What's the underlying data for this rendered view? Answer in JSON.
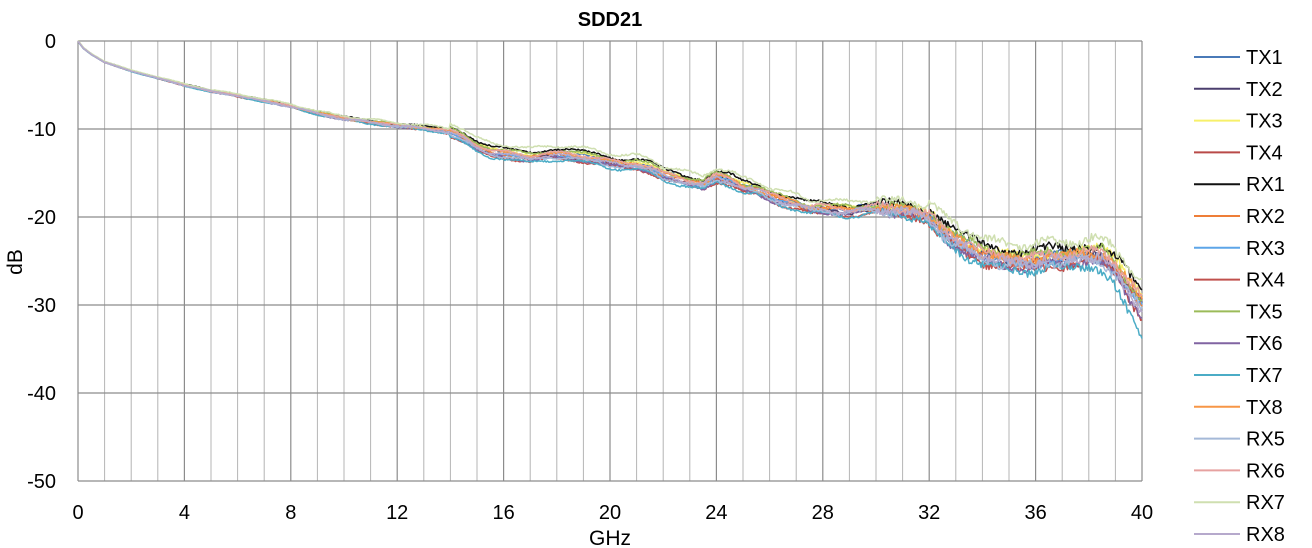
{
  "chart_data": {
    "type": "line",
    "title": "SDD21",
    "xlabel": "GHz",
    "ylabel": "dB",
    "xlim": [
      0,
      40
    ],
    "ylim": [
      -50,
      0
    ],
    "xticks": [
      0,
      4,
      8,
      12,
      16,
      20,
      24,
      28,
      32,
      36,
      40
    ],
    "yticks": [
      0,
      -10,
      -20,
      -30,
      -40,
      -50
    ],
    "x_minor_step": 1,
    "grid": true,
    "legend_position": "right",
    "base_curve": {
      "x": [
        0,
        0.2,
        0.5,
        1,
        2,
        3,
        4,
        5,
        6,
        7,
        8,
        9,
        10,
        11,
        12,
        13,
        14,
        14.5,
        15,
        15.5,
        16,
        16.5,
        17,
        17.5,
        18,
        18.5,
        19,
        19.5,
        20,
        20.5,
        21,
        21.5,
        22,
        22.5,
        23,
        23.5,
        24,
        24.5,
        25,
        25.5,
        26,
        26.5,
        27,
        27.5,
        28,
        28.5,
        29,
        29.5,
        30,
        30.5,
        31,
        31.5,
        32,
        32.5,
        33,
        33.5,
        34,
        34.5,
        35,
        35.5,
        36,
        36.5,
        37,
        37.5,
        38,
        38.5,
        39,
        39.5,
        40
      ],
      "y": [
        0,
        -0.8,
        -1.5,
        -2.4,
        -3.4,
        -4.2,
        -5.0,
        -5.7,
        -6.2,
        -6.8,
        -7.4,
        -8.2,
        -8.8,
        -9.2,
        -9.6,
        -9.9,
        -10.3,
        -11.0,
        -12.0,
        -12.6,
        -12.8,
        -13.0,
        -13.2,
        -13.0,
        -12.9,
        -13.0,
        -13.2,
        -13.4,
        -13.8,
        -14.0,
        -14.0,
        -14.4,
        -15.2,
        -15.6,
        -16.0,
        -16.3,
        -15.4,
        -15.8,
        -16.6,
        -16.9,
        -17.6,
        -18.1,
        -18.5,
        -19.0,
        -19.0,
        -19.2,
        -19.3,
        -19.1,
        -19.0,
        -19.1,
        -19.2,
        -19.4,
        -20.0,
        -21.5,
        -22.7,
        -23.5,
        -24.2,
        -24.6,
        -24.9,
        -25.1,
        -24.9,
        -24.6,
        -24.7,
        -24.5,
        -24.3,
        -24.5,
        -25.8,
        -28.0,
        -30.0
      ]
    },
    "series": [
      {
        "name": "TX1",
        "color": "#4a7ab8",
        "offset": 0.2,
        "seed": 1,
        "tail": 0.0
      },
      {
        "name": "TX2",
        "color": "#4b3f6e",
        "offset": -0.1,
        "seed": 2,
        "tail": 0.5
      },
      {
        "name": "TX3",
        "color": "#f7f06a",
        "offset": 0.3,
        "seed": 3,
        "tail": 1.0
      },
      {
        "name": "TX4",
        "color": "#b94a48",
        "offset": -0.3,
        "seed": 4,
        "tail": -1.0
      },
      {
        "name": "RX1",
        "color": "#111111",
        "offset": 0.6,
        "seed": 5,
        "tail": 0.5
      },
      {
        "name": "RX2",
        "color": "#ee7e38",
        "offset": 0.0,
        "seed": 6,
        "tail": -0.5
      },
      {
        "name": "RX3",
        "color": "#5da5e8",
        "offset": -0.2,
        "seed": 7,
        "tail": 0.0
      },
      {
        "name": "RX4",
        "color": "#c0504d",
        "offset": -0.5,
        "seed": 8,
        "tail": 1.5
      },
      {
        "name": "TX5",
        "color": "#9bbb59",
        "offset": 0.4,
        "seed": 9,
        "tail": 0.0
      },
      {
        "name": "TX6",
        "color": "#8064a2",
        "offset": -0.4,
        "seed": 10,
        "tail": -0.5
      },
      {
        "name": "TX7",
        "color": "#4bacc6",
        "offset": -0.6,
        "seed": 11,
        "tail": -2.5
      },
      {
        "name": "TX8",
        "color": "#f79646",
        "offset": 0.1,
        "seed": 12,
        "tail": 0.5
      },
      {
        "name": "RX5",
        "color": "#a5b9d8",
        "offset": -0.3,
        "seed": 13,
        "tail": 0.0
      },
      {
        "name": "RX6",
        "color": "#e6a2a0",
        "offset": 0.2,
        "seed": 14,
        "tail": 0.5
      },
      {
        "name": "RX7",
        "color": "#cfdfb0",
        "offset": 1.0,
        "seed": 15,
        "tail": 1.0
      },
      {
        "name": "RX8",
        "color": "#b6a9cc",
        "offset": -0.1,
        "seed": 16,
        "tail": -0.5
      }
    ]
  }
}
